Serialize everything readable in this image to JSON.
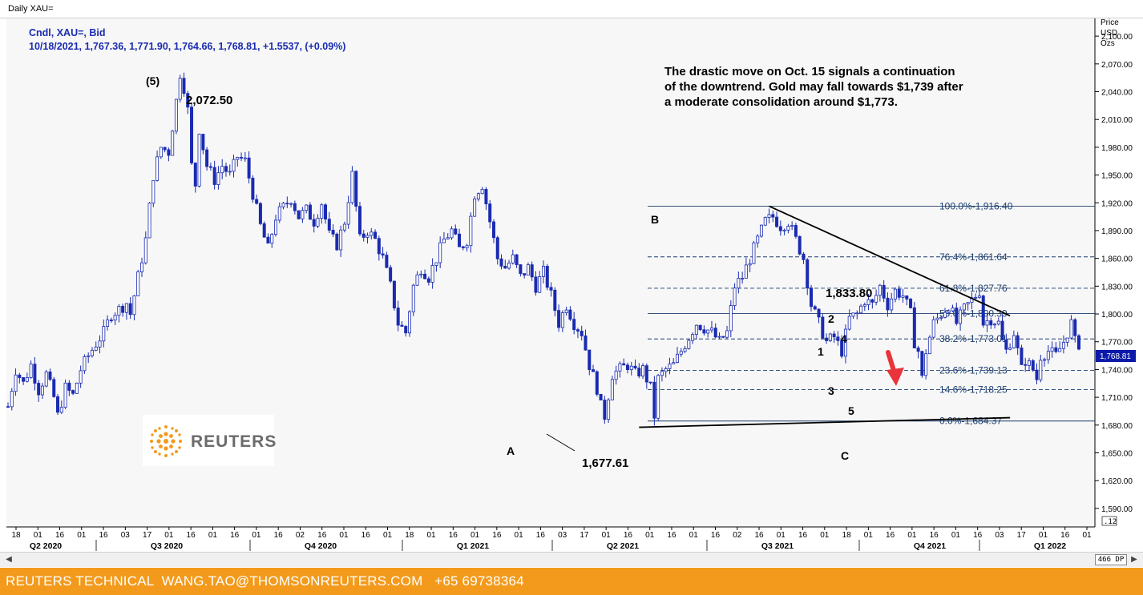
{
  "window": {
    "title": "Daily XAU="
  },
  "legend": {
    "line1": "Cndl, XAU=, Bid",
    "line2": "10/18/2021, 1,767.36, 1,771.90, 1,764.66, 1,768.81, +1.5537, (+0.09%)"
  },
  "axis_unit": [
    "Price",
    "USD",
    "Ozs"
  ],
  "annotation": [
    "The drastic move on Oct. 15 signals a continuation",
    "of the downtrend. Gold may fall towards $1,739 after",
    "a moderate consolidation around $1,773."
  ],
  "watermark": {
    "text": "REUTERS"
  },
  "footer": {
    "text": "REUTERS TECHNICAL  WANG.TAO@THOMSONREUTERS.COM   +65 69738364"
  },
  "scrollbar": {
    "zoom": "466 DP"
  },
  "current_price_label": "1,768.81",
  "colors": {
    "candle": "#1a2bb0",
    "footer": "#f39a1c",
    "arrow": "#e8343a",
    "fib": "#1a3d6e"
  },
  "chart_data": {
    "type": "candlestick",
    "title": "Daily XAU=",
    "ylabel": "Price USD Ozs",
    "ylim": [
      1570,
      2120
    ],
    "y_ticks": [
      1590,
      1620,
      1650,
      1680,
      1710,
      1740,
      1770,
      1800,
      1830,
      1860,
      1890,
      1920,
      1950,
      1980,
      2010,
      2040,
      2070,
      2100
    ],
    "y_tick_labels": [
      "1,590.00",
      "1,620.00",
      "1,650.00",
      "1,680.00",
      "1,710.00",
      "1,740.00",
      "1,770.00",
      "1,800.00",
      "1,830.00",
      "1,860.00",
      "1,890.00",
      "1,920.00",
      "1,950.00",
      "1,980.00",
      "2,010.00",
      "2,040.00",
      "2,070.00",
      "2,100.00"
    ],
    "x_day_ticks": [
      "18",
      "01",
      "16",
      "01",
      "16",
      "03",
      "17",
      "01",
      "16",
      "01",
      "16",
      "01",
      "16",
      "02",
      "16",
      "01",
      "16",
      "01",
      "18",
      "01",
      "16",
      "01",
      "16",
      "01",
      "16",
      "03",
      "17",
      "01",
      "16",
      "01",
      "16",
      "01",
      "16",
      "02",
      "16",
      "01",
      "16",
      "01",
      "18",
      "01",
      "16",
      "01",
      "16",
      "01",
      "16",
      "03",
      "17",
      "01",
      "16",
      "01"
    ],
    "x_quarter_labels": [
      "Q2 2020",
      "Q3 2020",
      "Q4 2020",
      "Q1 2021",
      "Q2 2021",
      "Q3 2021",
      "Q4 2021",
      "Q1 2022"
    ],
    "price_path": [
      [
        0,
        1700
      ],
      [
        2,
        1740
      ],
      [
        4,
        1725
      ],
      [
        6,
        1745
      ],
      [
        8,
        1718
      ],
      [
        10,
        1735
      ],
      [
        12,
        1710
      ],
      [
        13,
        1690
      ],
      [
        15,
        1720
      ],
      [
        17,
        1712
      ],
      [
        19,
        1740
      ],
      [
        21,
        1755
      ],
      [
        23,
        1768
      ],
      [
        25,
        1780
      ],
      [
        27,
        1800
      ],
      [
        29,
        1805
      ],
      [
        31,
        1812
      ],
      [
        32,
        1800
      ],
      [
        34,
        1840
      ],
      [
        36,
        1880
      ],
      [
        38,
        1950
      ],
      [
        40,
        1980
      ],
      [
        42,
        1975
      ],
      [
        44,
        2030
      ],
      [
        45,
        2060
      ],
      [
        46,
        2045
      ],
      [
        47,
        2020
      ],
      [
        48,
        1960
      ],
      [
        49,
        1940
      ],
      [
        50,
        2000
      ],
      [
        52,
        1960
      ],
      [
        54,
        1945
      ],
      [
        56,
        1960
      ],
      [
        58,
        1950
      ],
      [
        60,
        1970
      ],
      [
        62,
        1965
      ],
      [
        64,
        1930
      ],
      [
        66,
        1895
      ],
      [
        68,
        1870
      ],
      [
        70,
        1905
      ],
      [
        72,
        1915
      ],
      [
        74,
        1925
      ],
      [
        76,
        1905
      ],
      [
        78,
        1912
      ],
      [
        80,
        1900
      ],
      [
        82,
        1920
      ],
      [
        84,
        1885
      ],
      [
        86,
        1875
      ],
      [
        88,
        1900
      ],
      [
        90,
        1950
      ],
      [
        92,
        1880
      ],
      [
        94,
        1890
      ],
      [
        96,
        1880
      ],
      [
        98,
        1860
      ],
      [
        100,
        1830
      ],
      [
        102,
        1790
      ],
      [
        104,
        1780
      ],
      [
        106,
        1830
      ],
      [
        108,
        1850
      ],
      [
        110,
        1840
      ],
      [
        112,
        1860
      ],
      [
        114,
        1880
      ],
      [
        116,
        1890
      ],
      [
        118,
        1870
      ],
      [
        120,
        1880
      ],
      [
        122,
        1930
      ],
      [
        124,
        1940
      ],
      [
        126,
        1900
      ],
      [
        128,
        1860
      ],
      [
        130,
        1850
      ],
      [
        132,
        1860
      ],
      [
        134,
        1840
      ],
      [
        136,
        1850
      ],
      [
        138,
        1830
      ],
      [
        140,
        1845
      ],
      [
        142,
        1820
      ],
      [
        144,
        1790
      ],
      [
        146,
        1810
      ],
      [
        148,
        1790
      ],
      [
        150,
        1780
      ],
      [
        152,
        1745
      ],
      [
        154,
        1720
      ],
      [
        155,
        1700
      ],
      [
        156,
        1690
      ],
      [
        158,
        1735
      ],
      [
        160,
        1740
      ],
      [
        162,
        1745
      ],
      [
        164,
        1735
      ],
      [
        166,
        1740
      ],
      [
        168,
        1720
      ],
      [
        169,
        1690
      ],
      [
        170,
        1730
      ],
      [
        172,
        1740
      ],
      [
        174,
        1745
      ],
      [
        176,
        1760
      ],
      [
        178,
        1775
      ],
      [
        180,
        1790
      ],
      [
        182,
        1785
      ],
      [
        184,
        1780
      ],
      [
        186,
        1770
      ],
      [
        188,
        1780
      ],
      [
        190,
        1830
      ],
      [
        192,
        1840
      ],
      [
        194,
        1860
      ],
      [
        196,
        1880
      ],
      [
        198,
        1900
      ],
      [
        200,
        1905
      ],
      [
        202,
        1895
      ],
      [
        204,
        1900
      ],
      [
        206,
        1880
      ],
      [
        208,
        1860
      ],
      [
        210,
        1810
      ],
      [
        212,
        1790
      ],
      [
        214,
        1770
      ],
      [
        216,
        1775
      ],
      [
        218,
        1760
      ],
      [
        220,
        1795
      ],
      [
        222,
        1800
      ],
      [
        224,
        1815
      ],
      [
        226,
        1810
      ],
      [
        228,
        1830
      ],
      [
        230,
        1810
      ],
      [
        232,
        1825
      ],
      [
        234,
        1820
      ],
      [
        236,
        1800
      ],
      [
        237,
        1770
      ],
      [
        238,
        1760
      ],
      [
        239,
        1730
      ],
      [
        240,
        1760
      ],
      [
        242,
        1790
      ],
      [
        244,
        1800
      ],
      [
        246,
        1810
      ],
      [
        248,
        1790
      ],
      [
        250,
        1805
      ],
      [
        252,
        1815
      ],
      [
        254,
        1825
      ],
      [
        255,
        1790
      ],
      [
        257,
        1795
      ],
      [
        259,
        1790
      ],
      [
        260,
        1770
      ],
      [
        261,
        1760
      ],
      [
        263,
        1780
      ],
      [
        264,
        1760
      ],
      [
        265,
        1740
      ],
      [
        266,
        1750
      ],
      [
        268,
        1740
      ],
      [
        269,
        1730
      ],
      [
        270,
        1755
      ],
      [
        272,
        1760
      ],
      [
        274,
        1755
      ],
      [
        276,
        1770
      ],
      [
        278,
        1790
      ],
      [
        279,
        1770
      ],
      [
        280,
        1768
      ]
    ],
    "key_points": [
      {
        "label": "(5)",
        "value": 2072.5,
        "value_label": "2,072.50",
        "x_index": 45
      },
      {
        "label": "A",
        "value": 1677.61,
        "value_label": "1,677.61",
        "x_index": 169
      },
      {
        "label": "B",
        "x_index": 199
      },
      {
        "label": "C",
        "x_index": 262
      },
      {
        "label": "1,833.80",
        "value": 1833.8,
        "x_index": 252
      }
    ],
    "wave_labels": [
      "1",
      "2",
      "3",
      "4",
      "5"
    ],
    "fib_levels": [
      {
        "pct": "100.0%",
        "value": 1916.4,
        "label": "1,916.40",
        "style": "solid"
      },
      {
        "pct": "76.4%",
        "value": 1861.64,
        "label": "1,861.64",
        "style": "dashed"
      },
      {
        "pct": "61.8%",
        "value": 1827.76,
        "label": "1,827.76",
        "style": "dashed"
      },
      {
        "pct": "50.0%",
        "value": 1800.39,
        "label": "1,800.39",
        "style": "solid"
      },
      {
        "pct": "38.2%",
        "value": 1773.01,
        "label": "1,773.01",
        "style": "dashed"
      },
      {
        "pct": "23.6%",
        "value": 1739.13,
        "label": "1,739.13",
        "style": "dashed"
      },
      {
        "pct": "14.6%",
        "value": 1718.25,
        "label": "1,718.25",
        "style": "dashed"
      },
      {
        "pct": "0.0%",
        "value": 1684.37,
        "label": "1,684.37",
        "style": "solid"
      }
    ],
    "trendlines": [
      {
        "name": "descending-resistance",
        "from": [
          1916.4,
          199
        ],
        "to": [
          1798,
          262
        ]
      },
      {
        "name": "support",
        "from": [
          1677.61,
          165
        ],
        "to": [
          1688,
          262
        ]
      }
    ],
    "grid": false,
    "legend_position": "top-left"
  }
}
